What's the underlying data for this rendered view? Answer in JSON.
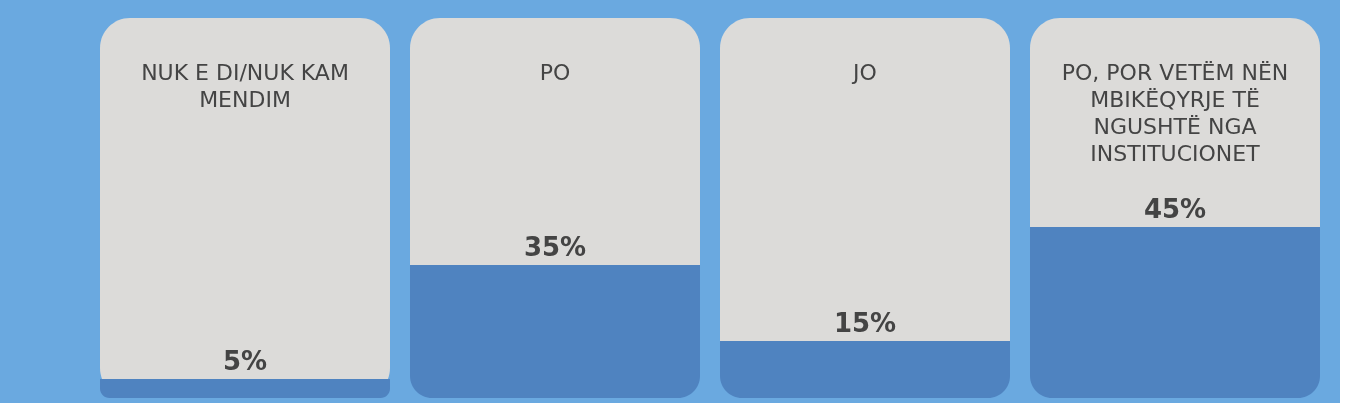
{
  "chart_data": {
    "type": "bar",
    "categories": [
      "NUK E DI/NUK KAM MENDIM",
      "PO",
      "JO",
      "PO, POR VETËM NËN MBIKËQYRJE TË NGUSHTË NGA INSTITUCIONET"
    ],
    "values": [
      5,
      35,
      15,
      45
    ],
    "colors": [
      "#4f83c0",
      "#4f83c0",
      "#4f83c0",
      "#4f83c0"
    ],
    "value_labels": [
      "5%",
      "35%",
      "15%",
      "45%"
    ]
  }
}
